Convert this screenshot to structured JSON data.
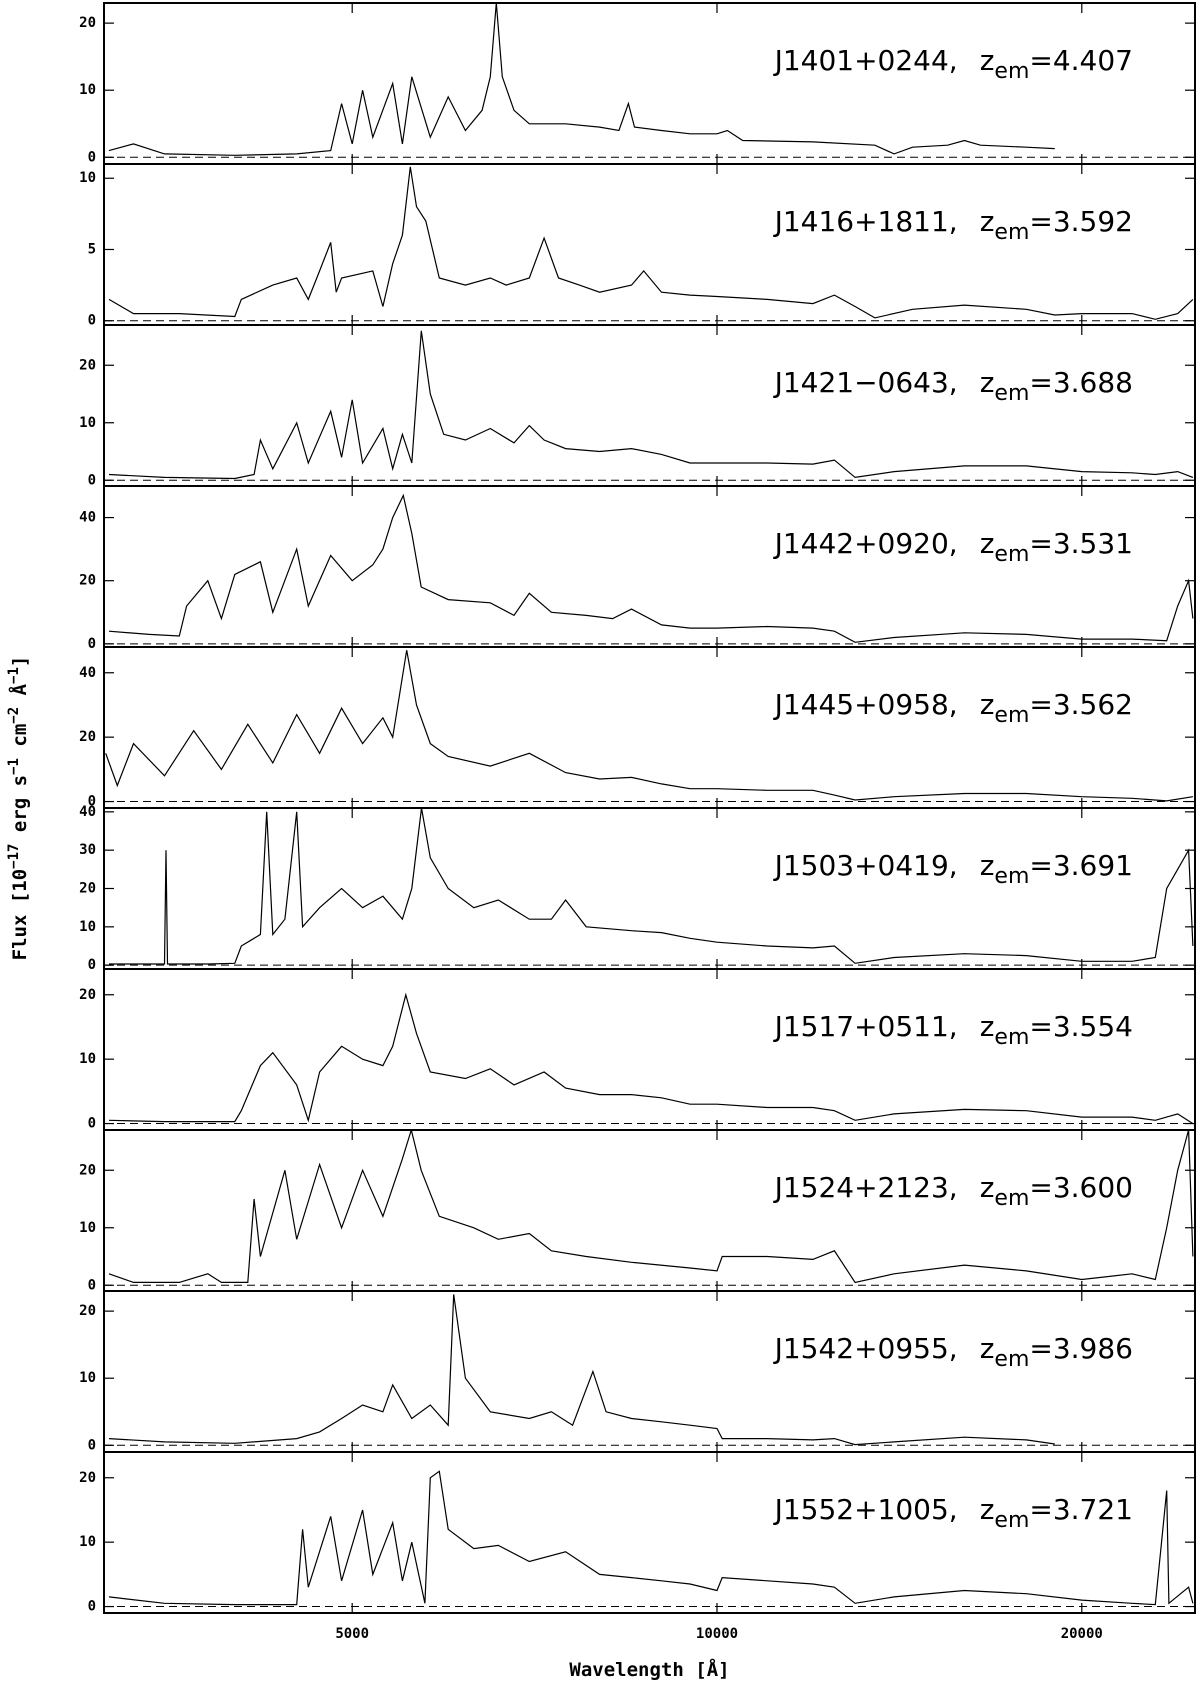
{
  "chart_data": [
    {
      "type": "line",
      "xscale": "log",
      "xlim": [
        3120,
        24800
      ],
      "ylim": [
        -1,
        23
      ],
      "yticks": [
        0,
        10,
        20
      ],
      "color": "#000000",
      "label": {
        "name": "J1401+0244,",
        "z": "z",
        "sub": "em",
        "value": "=4.407"
      },
      "ylabel": [
        "Flux [10",
        "−17",
        " erg s",
        "−1",
        " cm",
        "−2",
        " Å",
        "−1",
        "]"
      ],
      "x": [
        3150,
        3300,
        3500,
        4000,
        4500,
        4800,
        4900,
        5000,
        5100,
        5200,
        5400,
        5500,
        5600,
        5800,
        6000,
        6200,
        6400,
        6500,
        6575,
        6650,
        6800,
        7000,
        7500,
        8000,
        8300,
        8450,
        8550,
        9000,
        9500,
        10000,
        10200,
        10500,
        12000,
        13500,
        14000,
        14500,
        15500,
        16000,
        16500,
        18000,
        19000
      ],
      "values": [
        1,
        2,
        0.5,
        0.3,
        0.5,
        1,
        8,
        2,
        10,
        3,
        11,
        2,
        12,
        3,
        9,
        4,
        7,
        12,
        23,
        12,
        7,
        5,
        5,
        4.5,
        4,
        8,
        4.5,
        4,
        3.5,
        3.5,
        4,
        2.5,
        2.3,
        1.8,
        0.5,
        1.5,
        1.8,
        2.5,
        1.8,
        1.5,
        1.3
      ]
    },
    {
      "type": "line",
      "xscale": "log",
      "xlim": [
        3120,
        24800
      ],
      "ylim": [
        -0.3,
        11
      ],
      "yticks": [
        0,
        5,
        10
      ],
      "color": "#000000",
      "label": {
        "name": "J1416+1811,",
        "z": "z",
        "sub": "em",
        "value": "=3.592"
      },
      "x": [
        3150,
        3300,
        3600,
        4000,
        4050,
        4300,
        4500,
        4600,
        4700,
        4800,
        4850,
        4900,
        5200,
        5300,
        5400,
        5500,
        5584,
        5650,
        5750,
        5900,
        6200,
        6500,
        6700,
        7000,
        7200,
        7400,
        7700,
        8000,
        8500,
        8700,
        9000,
        9500,
        10000,
        11000,
        12000,
        12500,
        13000,
        13500,
        14500,
        16000,
        18000,
        19000,
        20000,
        22000,
        23000,
        24000,
        24700
      ],
      "values": [
        1.5,
        0.5,
        0.5,
        0.3,
        1.5,
        2.5,
        3,
        1.5,
        3.5,
        5.5,
        2,
        3,
        3.5,
        1,
        4,
        6,
        10.8,
        8,
        7,
        3,
        2.5,
        3,
        2.5,
        3,
        5.8,
        3,
        2.5,
        2,
        2.5,
        3.5,
        2,
        1.8,
        1.7,
        1.5,
        1.2,
        1.8,
        1,
        0.2,
        0.8,
        1.1,
        0.8,
        0.4,
        0.5,
        0.5,
        0.1,
        0.5,
        1.5
      ]
    },
    {
      "type": "line",
      "xscale": "log",
      "xlim": [
        3120,
        24800
      ],
      "ylim": [
        -1,
        27
      ],
      "yticks": [
        0,
        10,
        20
      ],
      "color": "#000000",
      "label": {
        "name": "J1421−0643,",
        "z": "z",
        "sub": "em",
        "value": "=3.688"
      },
      "x": [
        3150,
        3500,
        4000,
        4150,
        4200,
        4300,
        4500,
        4600,
        4800,
        4900,
        5000,
        5100,
        5300,
        5400,
        5500,
        5600,
        5701,
        5800,
        5950,
        6200,
        6500,
        6800,
        7000,
        7200,
        7500,
        8000,
        8500,
        9000,
        9500,
        10000,
        11000,
        12000,
        12500,
        13000,
        14000,
        16000,
        18000,
        20000,
        22000,
        23000,
        24000,
        24700
      ],
      "values": [
        1,
        0.5,
        0.3,
        1,
        7,
        2,
        10,
        3,
        12,
        4,
        14,
        3,
        9,
        2,
        8,
        3,
        26,
        15,
        8,
        7,
        9,
        6.5,
        9.5,
        7,
        5.5,
        5,
        5.5,
        4.5,
        3,
        3,
        3,
        2.8,
        3.5,
        0.5,
        1.5,
        2.5,
        2.5,
        1.5,
        1.3,
        1,
        1.5,
        0.5
      ]
    },
    {
      "type": "line",
      "xscale": "log",
      "xlim": [
        3120,
        24800
      ],
      "ylim": [
        -1,
        50
      ],
      "yticks": [
        0,
        20,
        40
      ],
      "color": "#000000",
      "label": {
        "name": "J1442+0920,",
        "z": "z",
        "sub": "em",
        "value": "=3.531"
      },
      "x": [
        3150,
        3400,
        3600,
        3650,
        3800,
        3900,
        4000,
        4200,
        4300,
        4500,
        4600,
        4800,
        5000,
        5200,
        5300,
        5400,
        5510,
        5600,
        5700,
        6000,
        6500,
        6800,
        7000,
        7300,
        7800,
        8200,
        8500,
        9000,
        9500,
        10000,
        11000,
        12000,
        12500,
        13000,
        14000,
        16000,
        18000,
        20000,
        22000,
        23500,
        24000,
        24500,
        24700
      ],
      "values": [
        4,
        3,
        2.5,
        12,
        20,
        8,
        22,
        26,
        10,
        30,
        12,
        28,
        20,
        25,
        30,
        40,
        47,
        35,
        18,
        14,
        13,
        9,
        16,
        10,
        9,
        8,
        11,
        6,
        5,
        5,
        5.5,
        5,
        4,
        0.5,
        2,
        3.5,
        3,
        1.5,
        1.5,
        1,
        12,
        20,
        8
      ]
    },
    {
      "type": "line",
      "xscale": "log",
      "xlim": [
        3120,
        24800
      ],
      "ylim": [
        -2,
        48
      ],
      "yticks": [
        0,
        20,
        40
      ],
      "color": "#000000",
      "label": {
        "name": "J1445+0958,",
        "z": "z",
        "sub": "em",
        "value": "=3.562"
      },
      "x": [
        3130,
        3200,
        3300,
        3500,
        3700,
        3900,
        4100,
        4300,
        4500,
        4700,
        4900,
        5100,
        5300,
        5400,
        5546,
        5650,
        5800,
        6000,
        6500,
        7000,
        7500,
        8000,
        8500,
        9000,
        9500,
        10000,
        11000,
        12000,
        12500,
        13000,
        14000,
        16000,
        18000,
        20000,
        22000,
        23500,
        24700
      ],
      "values": [
        15,
        5,
        18,
        8,
        22,
        10,
        24,
        12,
        27,
        15,
        29,
        18,
        26,
        20,
        47,
        30,
        18,
        14,
        11,
        15,
        9,
        7,
        7.5,
        5.5,
        4,
        4,
        3.5,
        3.5,
        2,
        0.5,
        1.5,
        2.5,
        2.5,
        1.5,
        1,
        0.2,
        1.5
      ]
    },
    {
      "type": "line",
      "xscale": "log",
      "xlim": [
        3120,
        24800
      ],
      "ylim": [
        -1,
        41
      ],
      "yticks": [
        0,
        10,
        20,
        30,
        40
      ],
      "color": "#000000",
      "label": {
        "name": "J1503+0419,",
        "z": "z",
        "sub": "em",
        "value": "=3.691"
      },
      "x": [
        3150,
        3500,
        3510,
        3520,
        3800,
        4000,
        4050,
        4200,
        4250,
        4300,
        4400,
        4500,
        4550,
        4700,
        4900,
        5100,
        5300,
        5500,
        5600,
        5704,
        5800,
        6000,
        6300,
        6600,
        7000,
        7300,
        7500,
        7800,
        8500,
        9000,
        9500,
        10000,
        11000,
        12000,
        12500,
        13000,
        14000,
        16000,
        18000,
        20000,
        22000,
        23000,
        23500,
        24000,
        24500,
        24700
      ],
      "values": [
        0.3,
        0.3,
        30,
        0.3,
        0.3,
        0.5,
        5,
        8,
        40,
        8,
        12,
        40,
        10,
        15,
        20,
        15,
        18,
        12,
        20,
        41,
        28,
        20,
        15,
        17,
        12,
        12,
        17,
        10,
        9,
        8.5,
        7,
        6,
        5,
        4.5,
        5,
        0.5,
        2,
        3,
        2.5,
        1,
        1,
        2,
        20,
        25,
        30,
        5
      ]
    },
    {
      "type": "line",
      "xscale": "log",
      "xlim": [
        3120,
        24800
      ],
      "ylim": [
        -1,
        24
      ],
      "yticks": [
        0,
        10,
        20
      ],
      "color": "#000000",
      "label": {
        "name": "J1517+0511,",
        "z": "z",
        "sub": "em",
        "value": "=3.554"
      },
      "x": [
        3150,
        3500,
        4000,
        4050,
        4200,
        4300,
        4500,
        4600,
        4700,
        4900,
        5100,
        5300,
        5400,
        5536,
        5650,
        5800,
        6200,
        6500,
        6800,
        7200,
        7500,
        8000,
        8500,
        9000,
        9500,
        10000,
        11000,
        12000,
        12500,
        13000,
        14000,
        16000,
        18000,
        20000,
        22000,
        23000,
        24000,
        24700
      ],
      "values": [
        0.5,
        0.3,
        0.3,
        2,
        9,
        11,
        6,
        0.5,
        8,
        12,
        10,
        9,
        12,
        20,
        14,
        8,
        7,
        8.5,
        6,
        8,
        5.5,
        4.5,
        4.5,
        4,
        3,
        3,
        2.5,
        2.5,
        2,
        0.5,
        1.5,
        2.2,
        2,
        1,
        1,
        0.5,
        1.5,
        0
      ]
    },
    {
      "type": "line",
      "xscale": "log",
      "xlim": [
        3120,
        24800
      ],
      "ylim": [
        -1,
        27
      ],
      "yticks": [
        0,
        10,
        20
      ],
      "color": "#000000",
      "label": {
        "name": "J1524+2123,",
        "z": "z",
        "sub": "em",
        "value": "=3.600"
      },
      "x": [
        3150,
        3300,
        3600,
        3800,
        3900,
        4100,
        4150,
        4200,
        4400,
        4500,
        4700,
        4900,
        5100,
        5300,
        5500,
        5594,
        5700,
        5900,
        6300,
        6600,
        7000,
        7300,
        7800,
        8500,
        9500,
        10000,
        10100,
        11000,
        12000,
        12500,
        13000,
        14000,
        16000,
        18000,
        20000,
        21000,
        22000,
        23000,
        23500,
        24000,
        24500,
        24700
      ],
      "values": [
        2,
        0.5,
        0.5,
        2,
        0.5,
        0.5,
        15,
        5,
        20,
        8,
        21,
        10,
        20,
        12,
        22,
        27,
        20,
        12,
        10,
        8,
        9,
        6,
        5,
        4,
        3,
        2.5,
        5,
        5,
        4.5,
        6,
        0.5,
        2,
        3.5,
        2.5,
        1,
        1.5,
        2,
        1,
        10,
        20,
        27,
        5
      ]
    },
    {
      "type": "line",
      "xscale": "log",
      "xlim": [
        3120,
        24800
      ],
      "ylim": [
        -1,
        23
      ],
      "yticks": [
        0,
        10,
        20
      ],
      "color": "#000000",
      "label": {
        "name": "J1542+0955,",
        "z": "z",
        "sub": "em",
        "value": "=3.986"
      },
      "x": [
        3150,
        3500,
        4000,
        4500,
        4700,
        4900,
        5100,
        5300,
        5400,
        5600,
        5800,
        6000,
        6063,
        6200,
        6500,
        7000,
        7300,
        7600,
        7900,
        8100,
        8500,
        9000,
        9500,
        10000,
        10100,
        11000,
        12000,
        12500,
        13000,
        14000,
        16000,
        18000,
        19000
      ],
      "values": [
        1,
        0.5,
        0.3,
        1,
        2,
        4,
        6,
        5,
        9,
        4,
        6,
        3,
        22.5,
        10,
        5,
        4,
        5,
        3,
        11,
        5,
        4,
        3.5,
        3,
        2.5,
        1,
        1,
        0.8,
        1,
        0.1,
        0.5,
        1.2,
        0.8,
        0.2
      ]
    },
    {
      "type": "line",
      "xscale": "log",
      "xlim": [
        3120,
        24800
      ],
      "ylim": [
        -1,
        24
      ],
      "yticks": [
        0,
        10,
        20
      ],
      "color": "#000000",
      "label": {
        "name": "J1552+1005,",
        "z": "z",
        "sub": "em",
        "value": "=3.721"
      },
      "xticks": [
        5000,
        10000,
        20000
      ],
      "xlabel": "Wavelength [Å]",
      "x": [
        3150,
        3500,
        4000,
        4500,
        4550,
        4600,
        4800,
        4900,
        5100,
        5200,
        5400,
        5500,
        5600,
        5741,
        5800,
        5900,
        6000,
        6300,
        6600,
        7000,
        7500,
        8000,
        8500,
        9000,
        9500,
        10000,
        10100,
        11000,
        12000,
        12500,
        13000,
        14000,
        16000,
        18000,
        20000,
        22000,
        23000,
        23500,
        23600,
        24500,
        24700
      ],
      "values": [
        1.5,
        0.5,
        0.3,
        0.3,
        12,
        3,
        14,
        4,
        15,
        5,
        13,
        4,
        10,
        0.5,
        20,
        21,
        12,
        9,
        9.5,
        7,
        8.5,
        5,
        4.5,
        4,
        3.5,
        2.5,
        4.5,
        4,
        3.5,
        3,
        0.5,
        1.5,
        2.5,
        2,
        1,
        0.5,
        0.3,
        18,
        0.5,
        3,
        0.5
      ]
    }
  ]
}
